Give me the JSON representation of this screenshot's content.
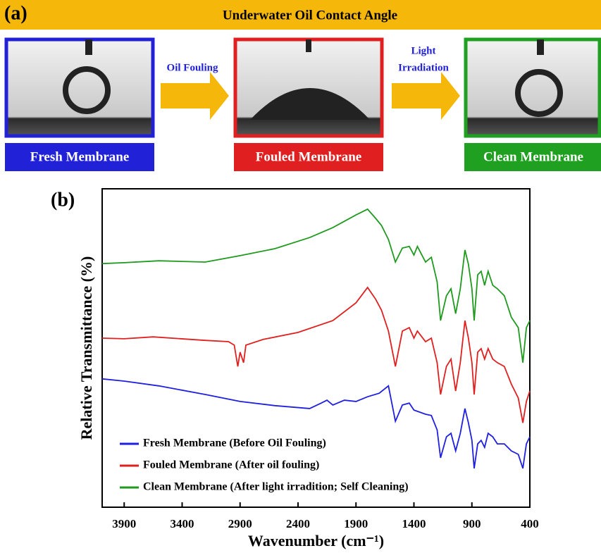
{
  "panel_a": {
    "label": "(a)",
    "title": "Underwater Oil Contact Angle",
    "steps": [
      "Fresh Membrane",
      "Fouled Membrane",
      "Clean Membrane"
    ],
    "arrows": [
      {
        "lines": [
          "Oil Fouling"
        ]
      },
      {
        "lines": [
          "Light",
          "Irradiation"
        ]
      }
    ]
  },
  "chart_data": {
    "type": "line",
    "panel_label": "(b)",
    "x_label": "Wavenumber (cm⁻¹)",
    "y_label": "Relative Transmittance (%)",
    "xlim": [
      4090,
      400
    ],
    "xticks": [
      3900,
      3400,
      2900,
      2400,
      1900,
      1400,
      900,
      400
    ],
    "ylim": [
      0,
      100
    ],
    "legend": "lower-left",
    "series": [
      {
        "name": "Fresh Membrane (Before Oil Fouling)",
        "color": "#1f1fe0",
        "x": [
          4090,
          3900,
          3600,
          3200,
          2900,
          2600,
          2300,
          2200,
          2150,
          2100,
          2000,
          1900,
          1800,
          1700,
          1620,
          1560,
          1500,
          1440,
          1400,
          1300,
          1250,
          1200,
          1170,
          1120,
          1080,
          1040,
          1000,
          960,
          930,
          900,
          880,
          850,
          820,
          790,
          760,
          720,
          680,
          620,
          560,
          500,
          460,
          430,
          400
        ],
        "values": [
          40.3,
          39.6,
          38.1,
          35.4,
          33.2,
          31.9,
          31.0,
          32.7,
          33.6,
          32.1,
          33.6,
          33.2,
          34.7,
          35.8,
          38.1,
          27.0,
          32.1,
          32.7,
          30.5,
          29.2,
          28.8,
          24.3,
          15.5,
          22.1,
          23.2,
          17.7,
          23.2,
          31.0,
          26.5,
          21.0,
          12.2,
          19.9,
          21.0,
          18.8,
          23.2,
          22.1,
          19.9,
          19.9,
          17.7,
          16.6,
          12.2,
          19.9,
          22.1
        ]
      },
      {
        "name": "Fouled Membrane (After oil fouling)",
        "color": "#e01f1f",
        "x": [
          4090,
          3900,
          3650,
          3200,
          3000,
          2950,
          2920,
          2900,
          2870,
          2850,
          2700,
          2400,
          2100,
          1900,
          1800,
          1730,
          1680,
          1620,
          1560,
          1500,
          1440,
          1400,
          1370,
          1300,
          1250,
          1200,
          1170,
          1120,
          1080,
          1040,
          1000,
          960,
          930,
          900,
          880,
          850,
          820,
          790,
          760,
          720,
          680,
          620,
          560,
          500,
          460,
          430,
          400
        ],
        "values": [
          53.1,
          52.9,
          53.5,
          52.4,
          52.0,
          50.9,
          44.2,
          48.7,
          45.4,
          50.9,
          52.7,
          54.9,
          58.6,
          64.2,
          69.0,
          65.3,
          61.9,
          55.3,
          44.2,
          55.3,
          56.4,
          53.1,
          55.3,
          52.0,
          53.1,
          45.4,
          35.4,
          44.2,
          46.5,
          36.5,
          45.4,
          58.6,
          53.1,
          45.4,
          35.4,
          48.7,
          49.8,
          46.5,
          49.8,
          46.5,
          45.4,
          44.2,
          38.7,
          34.3,
          26.5,
          33.2,
          36.5
        ]
      },
      {
        "name": "Clean Membrane (After light irradition; Self Cleaning)",
        "color": "#1f9a1f",
        "x": [
          4090,
          3900,
          3600,
          3200,
          2900,
          2600,
          2300,
          2100,
          1900,
          1800,
          1730,
          1680,
          1620,
          1560,
          1500,
          1440,
          1400,
          1370,
          1300,
          1250,
          1200,
          1170,
          1120,
          1080,
          1040,
          1000,
          960,
          930,
          900,
          880,
          850,
          820,
          790,
          760,
          720,
          680,
          620,
          560,
          500,
          460,
          430,
          400
        ],
        "values": [
          76.5,
          76.8,
          77.4,
          77.0,
          79.0,
          81.2,
          84.7,
          87.8,
          91.8,
          93.6,
          90.7,
          88.5,
          84.1,
          77.0,
          81.4,
          81.9,
          79.2,
          81.9,
          77.0,
          78.5,
          70.8,
          58.6,
          66.4,
          68.6,
          60.8,
          68.6,
          80.8,
          76.3,
          68.6,
          58.6,
          73.0,
          74.1,
          69.7,
          74.1,
          69.7,
          68.6,
          66.4,
          59.7,
          56.4,
          45.4,
          56.4,
          58.6
        ]
      }
    ]
  }
}
